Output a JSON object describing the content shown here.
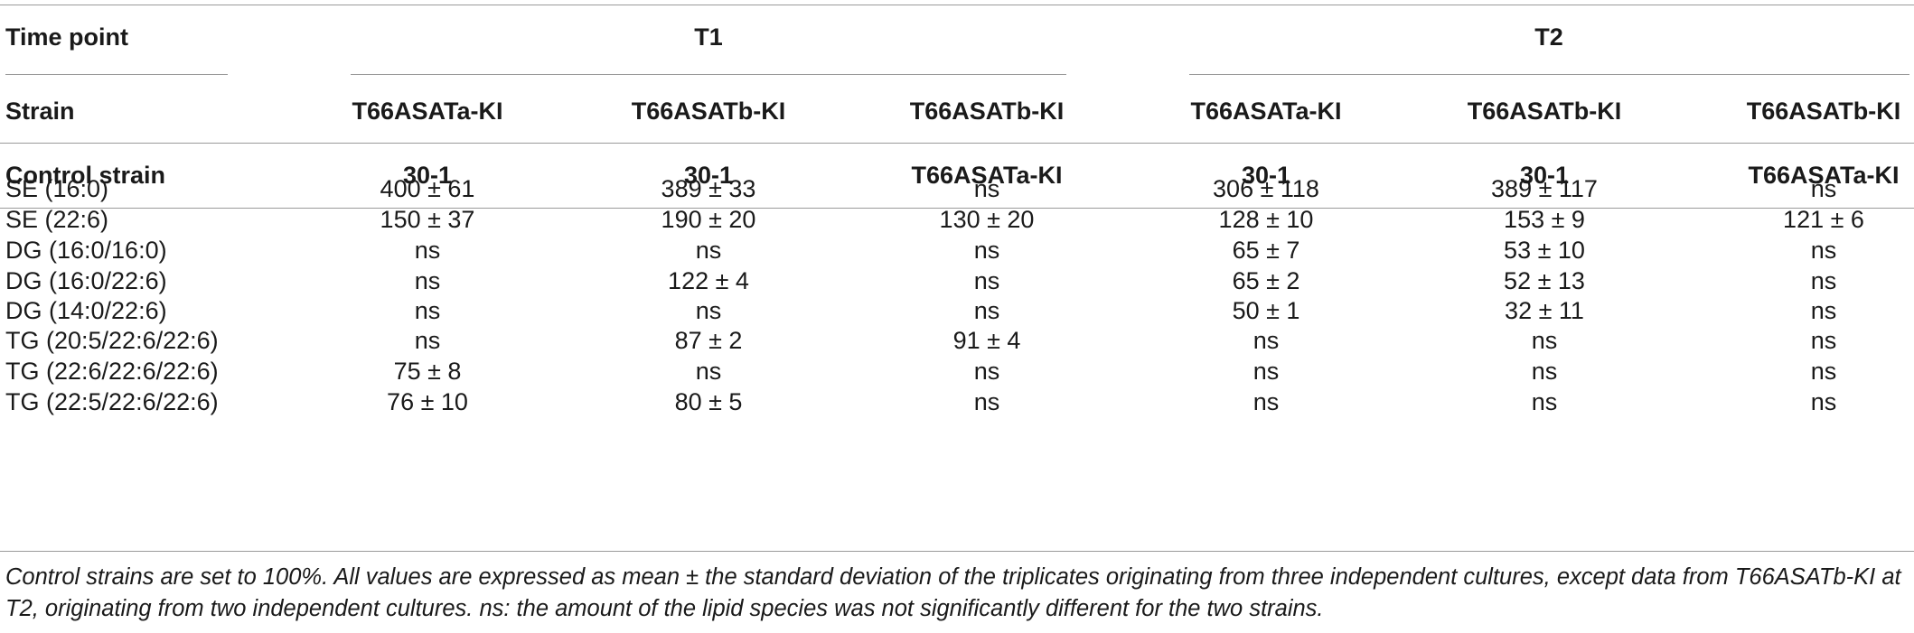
{
  "header": {
    "time_point_label": "Time point",
    "t1_label": "T1",
    "t2_label": "T2",
    "strain_label": "Strain",
    "control_label": "Control strain",
    "strains": [
      "T66ASATa-KI",
      "T66ASATb-KI",
      "T66ASATb-KI",
      "T66ASATa-KI",
      "T66ASATb-KI",
      "T66ASATb-KI"
    ],
    "controls": [
      "30-1",
      "30-1",
      "T66ASATa-KI",
      "30-1",
      "30-1",
      "T66ASATa-KI"
    ]
  },
  "rows": [
    {
      "label": "SE (16:0)",
      "values": [
        "400 ± 61",
        "389 ± 33",
        "ns",
        "306 ± 118",
        "389 ± 117",
        "ns"
      ]
    },
    {
      "label": "SE (22:6)",
      "values": [
        "150 ± 37",
        "190 ± 20",
        "130 ± 20",
        "128 ± 10",
        "153 ± 9",
        "121 ± 6"
      ]
    },
    {
      "label": "DG (16:0/16:0)",
      "values": [
        "ns",
        "ns",
        "ns",
        "65 ± 7",
        "53 ± 10",
        "ns"
      ]
    },
    {
      "label": "DG (16:0/22:6)",
      "values": [
        "ns",
        "122 ± 4",
        "ns",
        "65 ± 2",
        "52 ± 13",
        "ns"
      ]
    },
    {
      "label": "DG (14:0/22:6)",
      "values": [
        "ns",
        "ns",
        "ns",
        "50 ± 1",
        "32 ± 11",
        "ns"
      ]
    },
    {
      "label": "TG (20:5/22:6/22:6)",
      "values": [
        "ns",
        "87 ± 2",
        "91 ± 4",
        "ns",
        "ns",
        "ns"
      ]
    },
    {
      "label": "TG (22:6/22:6/22:6)",
      "values": [
        "75 ± 8",
        "ns",
        "ns",
        "ns",
        "ns",
        "ns"
      ]
    },
    {
      "label": "TG (22:5/22:6/22:6)",
      "values": [
        "76 ± 10",
        "80 ± 5",
        "ns",
        "ns",
        "ns",
        "ns"
      ]
    }
  ],
  "footnote": "Control strains are set to 100%. All values are expressed as mean ± the standard deviation of the triplicates originating from three independent cultures, except data from T66ASATb-KI at T2, originating from two independent cultures. ns: the amount of the lipid species was not significantly different for the two strains."
}
